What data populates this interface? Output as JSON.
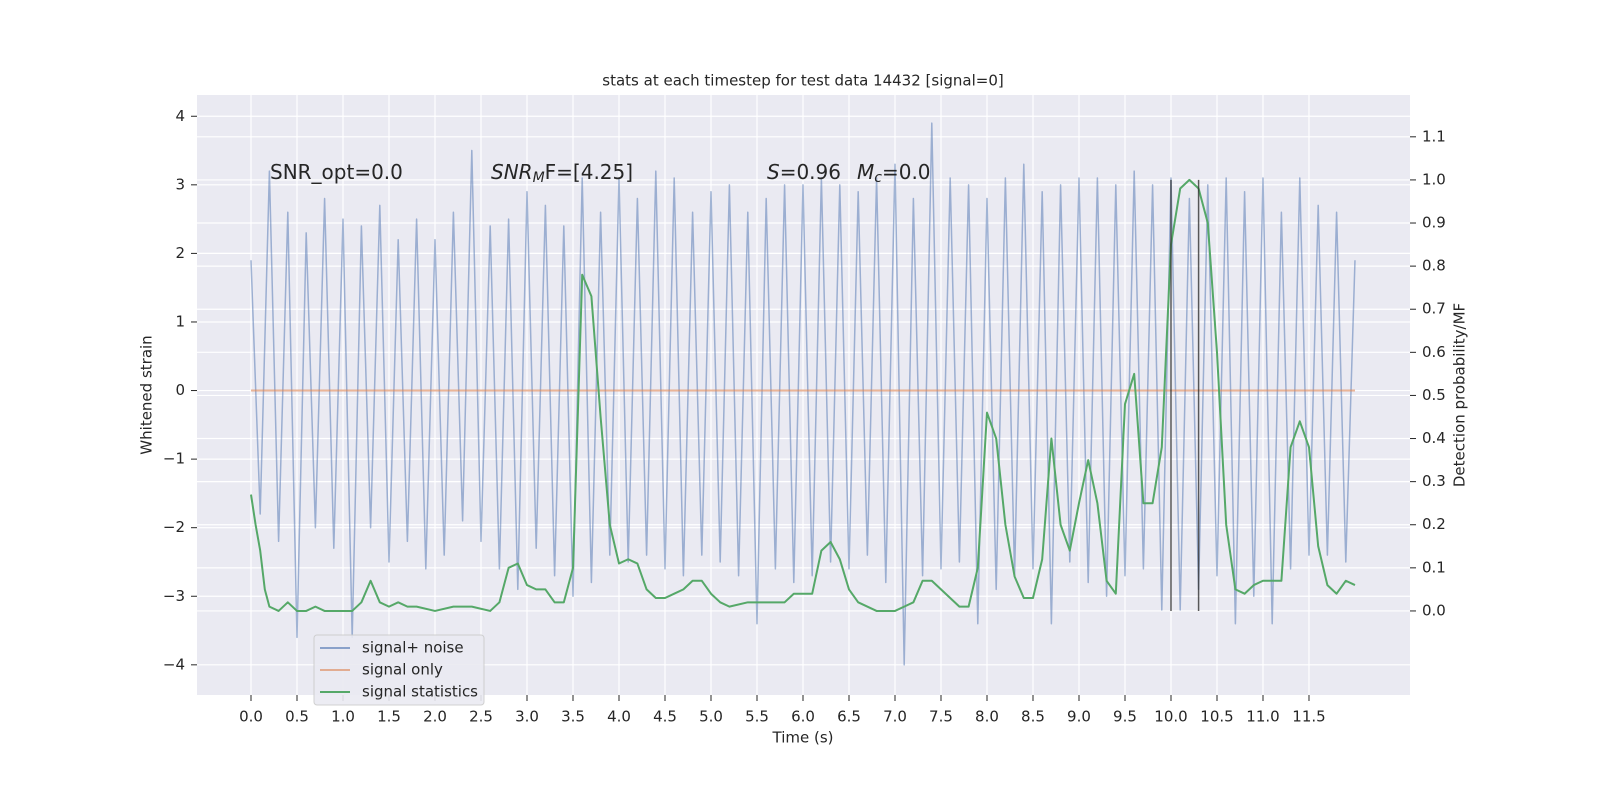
{
  "chart_data": {
    "type": "line",
    "title": "stats at each timestep for test data 14432 [signal=0]",
    "x_label": "Time (s)",
    "y_label": "Whitened strain",
    "y2_label": "Detection probability/MF",
    "xlim": [
      -0.587,
      12.598
    ],
    "ylim": [
      -4.44,
      4.31
    ],
    "y2lim": [
      -0.195,
      1.197
    ],
    "xticks": [
      {
        "value": 0,
        "label": "0.0"
      },
      {
        "value": 0.5,
        "label": "0.5"
      },
      {
        "value": 1,
        "label": "1.0"
      },
      {
        "value": 1.5,
        "label": "1.5"
      },
      {
        "value": 2,
        "label": "2.0"
      },
      {
        "value": 2.5,
        "label": "2.5"
      },
      {
        "value": 3,
        "label": "3.0"
      },
      {
        "value": 3.5,
        "label": "3.5"
      },
      {
        "value": 4,
        "label": "4.0"
      },
      {
        "value": 4.5,
        "label": "4.5"
      },
      {
        "value": 5,
        "label": "5.0"
      },
      {
        "value": 5.5,
        "label": "5.5"
      },
      {
        "value": 6,
        "label": "6.0"
      },
      {
        "value": 6.5,
        "label": "6.5"
      },
      {
        "value": 7,
        "label": "7.0"
      },
      {
        "value": 7.5,
        "label": "7.5"
      },
      {
        "value": 8,
        "label": "8.0"
      },
      {
        "value": 8.5,
        "label": "8.5"
      },
      {
        "value": 9,
        "label": "9.0"
      },
      {
        "value": 9.5,
        "label": "9.5"
      },
      {
        "value": 10,
        "label": "10.0"
      },
      {
        "value": 10.5,
        "label": "10.5"
      },
      {
        "value": 11,
        "label": "11.0"
      },
      {
        "value": 11.5,
        "label": "11.5"
      }
    ],
    "yticks": [
      {
        "value": -4,
        "label": "−4"
      },
      {
        "value": -3,
        "label": "−3"
      },
      {
        "value": -2,
        "label": "−2"
      },
      {
        "value": -1,
        "label": "−1"
      },
      0,
      1,
      2,
      3,
      4
    ],
    "y2ticks": [
      {
        "value": 0,
        "label": "0.0"
      },
      {
        "value": 0.1,
        "label": "0.1"
      },
      {
        "value": 0.2,
        "label": "0.2"
      },
      {
        "value": 0.3,
        "label": "0.3"
      },
      {
        "value": 0.4,
        "label": "0.4"
      },
      {
        "value": 0.5,
        "label": "0.5"
      },
      {
        "value": 0.6,
        "label": "0.6"
      },
      {
        "value": 0.7,
        "label": "0.7"
      },
      {
        "value": 0.8,
        "label": "0.8"
      },
      {
        "value": 0.9,
        "label": "0.9"
      },
      {
        "value": 1.0,
        "label": "1.0"
      },
      {
        "value": 1.1,
        "label": "1.1"
      }
    ],
    "grid": true,
    "legend_position": "lower left",
    "series": [
      {
        "name": "signal+ noise",
        "color": "#4c72b0",
        "x": [
          0,
          0.1,
          0.2,
          0.3,
          0.4,
          0.5,
          0.6,
          0.7,
          0.8,
          0.9,
          1,
          1.1,
          1.2,
          1.3,
          1.4,
          1.5,
          1.6,
          1.7,
          1.8,
          1.9,
          2,
          2.1,
          2.2,
          2.3,
          2.4,
          2.5,
          2.6,
          2.7,
          2.8,
          2.9,
          3,
          3.1,
          3.2,
          3.3,
          3.4,
          3.5,
          3.6,
          3.7,
          3.8,
          3.9,
          4,
          4.1,
          4.2,
          4.3,
          4.4,
          4.5,
          4.6,
          4.7,
          4.8,
          4.9,
          5,
          5.1,
          5.2,
          5.3,
          5.4,
          5.5,
          5.6,
          5.7,
          5.8,
          5.9,
          6,
          6.1,
          6.2,
          6.3,
          6.4,
          6.5,
          6.6,
          6.7,
          6.8,
          6.9,
          7,
          7.1,
          7.2,
          7.3,
          7.4,
          7.5,
          7.6,
          7.7,
          7.8,
          7.9,
          8,
          8.1,
          8.2,
          8.3,
          8.4,
          8.5,
          8.6,
          8.7,
          8.8,
          8.9,
          9,
          9.1,
          9.2,
          9.3,
          9.4,
          9.5,
          9.6,
          9.7,
          9.8,
          9.9,
          10,
          10.1,
          10.2,
          10.3,
          10.4,
          10.5,
          10.6,
          10.7,
          10.8,
          10.9,
          11,
          11.1,
          11.2,
          11.3,
          11.4,
          11.5,
          11.6,
          11.7,
          11.8,
          11.9,
          12
        ],
        "values": [
          1.9,
          -1.8,
          3.2,
          -2.2,
          2.6,
          -3.6,
          2.3,
          -2.0,
          2.8,
          -2.3,
          2.5,
          -3.6,
          2.4,
          -2.0,
          2.7,
          -2.5,
          2.2,
          -2.2,
          2.5,
          -2.6,
          2.2,
          -2.4,
          2.6,
          -1.9,
          3.5,
          -2.2,
          2.4,
          -2.6,
          2.5,
          -2.9,
          2.9,
          -2.3,
          2.7,
          -2.7,
          2.4,
          -3.0,
          3.1,
          -2.8,
          2.6,
          -2.4,
          3.1,
          -2.5,
          2.8,
          -2.4,
          3.2,
          -2.6,
          3.1,
          -2.7,
          2.6,
          -2.4,
          2.9,
          -2.5,
          3.0,
          -2.7,
          2.6,
          -3.4,
          2.8,
          -2.6,
          3.0,
          -2.8,
          3.0,
          -2.7,
          3.1,
          -2.5,
          3.0,
          -2.6,
          2.9,
          -2.4,
          3.1,
          -2.8,
          3.3,
          -4.0,
          2.8,
          -2.7,
          3.9,
          -2.6,
          3.1,
          -2.5,
          3.0,
          -3.4,
          2.8,
          -2.9,
          3.1,
          -2.7,
          3.3,
          -2.6,
          2.9,
          -3.4,
          3.0,
          -2.5,
          3.1,
          -2.8,
          3.1,
          -3.0,
          3.0,
          -2.7,
          3.2,
          -2.6,
          3.0,
          -3.2,
          3.1,
          -3.2,
          2.8,
          -2.9,
          3.0,
          -2.7,
          3.1,
          -3.4,
          2.9,
          -3.0,
          3.1,
          -3.4,
          2.6,
          -2.6,
          3.1,
          -2.4,
          2.7,
          -2.4,
          2.6,
          -2.5,
          1.9
        ]
      },
      {
        "name": "signal only",
        "color": "#dd8452",
        "x": [
          0,
          12
        ],
        "values": [
          0,
          0
        ]
      },
      {
        "name": "signal statistics",
        "color": "#55a868",
        "axis": "y2",
        "x": [
          0,
          0.05,
          0.1,
          0.15,
          0.2,
          0.3,
          0.4,
          0.5,
          0.6,
          0.7,
          0.8,
          0.9,
          1,
          1.1,
          1.2,
          1.3,
          1.4,
          1.5,
          1.6,
          1.7,
          1.8,
          2,
          2.2,
          2.4,
          2.6,
          2.7,
          2.8,
          2.9,
          3,
          3.1,
          3.2,
          3.3,
          3.4,
          3.5,
          3.6,
          3.7,
          3.8,
          3.9,
          4,
          4.1,
          4.2,
          4.3,
          4.4,
          4.5,
          4.6,
          4.7,
          4.8,
          4.9,
          5,
          5.1,
          5.2,
          5.4,
          5.6,
          5.8,
          5.9,
          6,
          6.1,
          6.2,
          6.3,
          6.4,
          6.5,
          6.6,
          6.8,
          7,
          7.1,
          7.2,
          7.3,
          7.4,
          7.5,
          7.6,
          7.7,
          7.8,
          7.9,
          8,
          8.1,
          8.2,
          8.3,
          8.4,
          8.5,
          8.6,
          8.7,
          8.8,
          8.9,
          9,
          9.1,
          9.2,
          9.3,
          9.4,
          9.5,
          9.6,
          9.7,
          9.8,
          9.9,
          10,
          10.1,
          10.2,
          10.3,
          10.4,
          10.5,
          10.6,
          10.7,
          10.8,
          10.9,
          11,
          11.1,
          11.2,
          11.3,
          11.4,
          11.5,
          11.6,
          11.7,
          11.8,
          11.9,
          12
        ],
        "values": [
          0.27,
          0.2,
          0.14,
          0.05,
          0.01,
          0,
          0.02,
          0,
          0,
          0.01,
          0,
          0,
          0,
          0,
          0.02,
          0.07,
          0.02,
          0.01,
          0.02,
          0.01,
          0.01,
          0,
          0.01,
          0.01,
          0,
          0.02,
          0.1,
          0.11,
          0.06,
          0.05,
          0.05,
          0.02,
          0.02,
          0.1,
          0.78,
          0.73,
          0.45,
          0.2,
          0.11,
          0.12,
          0.11,
          0.05,
          0.03,
          0.03,
          0.04,
          0.05,
          0.07,
          0.07,
          0.04,
          0.02,
          0.01,
          0.02,
          0.02,
          0.02,
          0.04,
          0.04,
          0.04,
          0.14,
          0.16,
          0.12,
          0.05,
          0.02,
          0,
          0,
          0.01,
          0.02,
          0.07,
          0.07,
          0.05,
          0.03,
          0.01,
          0.01,
          0.1,
          0.46,
          0.4,
          0.2,
          0.08,
          0.03,
          0.03,
          0.12,
          0.4,
          0.2,
          0.14,
          0.25,
          0.35,
          0.25,
          0.07,
          0.04,
          0.48,
          0.55,
          0.25,
          0.25,
          0.38,
          0.85,
          0.98,
          1.0,
          0.98,
          0.9,
          0.6,
          0.2,
          0.05,
          0.04,
          0.06,
          0.07,
          0.07,
          0.07,
          0.38,
          0.44,
          0.38,
          0.15,
          0.06,
          0.04,
          0.07,
          0.06
        ]
      }
    ],
    "vlines": [
      10.0,
      10.3
    ],
    "vline_range": [
      0,
      1.0
    ],
    "vline_color": "#333333",
    "annotations": [
      {
        "parts": [
          {
            "text": "SNR_opt=0.0"
          }
        ]
      },
      {
        "parts": [
          {
            "text": "SNR",
            "italic": true
          },
          {
            "text": "M",
            "italic": true,
            "sub": true
          },
          {
            "text": "F=[4.25]"
          }
        ]
      },
      {
        "parts": [
          {
            "text": "S",
            "italic": true
          },
          {
            "text": "=0.96"
          },
          {
            "text": "M",
            "italic": true
          },
          {
            "text": "c",
            "italic": true,
            "sub": true
          },
          {
            "text": "=0.0"
          }
        ]
      }
    ]
  }
}
